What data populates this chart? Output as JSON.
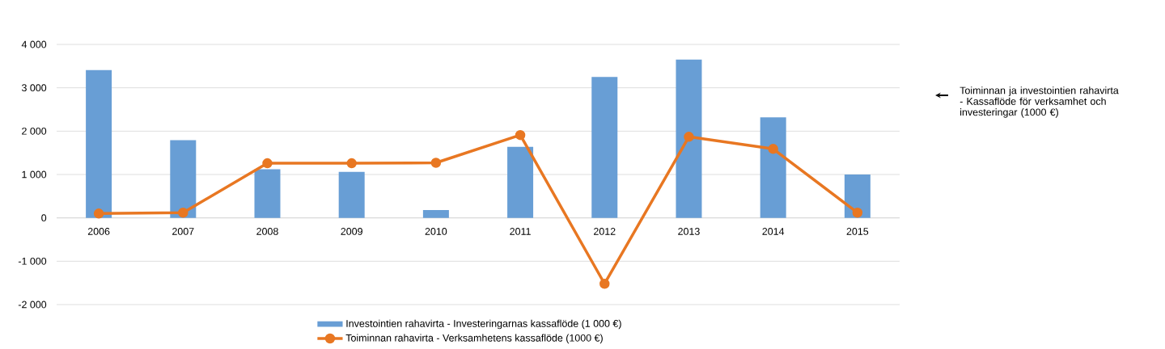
{
  "chart_data": {
    "type": "bar",
    "categories": [
      "2006",
      "2007",
      "2008",
      "2009",
      "2010",
      "2011",
      "2012",
      "2013",
      "2014",
      "2015"
    ],
    "series": [
      {
        "name": "Investointien rahavirta - Investeringarnas kassaflöde (1 000 €)",
        "color": "#689ed5",
        "values": [
          3410,
          1790,
          1120,
          1060,
          180,
          1640,
          3250,
          3650,
          2320,
          1000
        ]
      },
      {
        "name": "Toiminnan rahavirta - Verksamhetens kassaflöde (1000 €)",
        "type": "line",
        "color": "#e87722",
        "marker": "circle",
        "values": [
          100,
          120,
          1260,
          1260,
          1270,
          1910,
          -1520,
          1870,
          1590,
          120
        ]
      }
    ],
    "ylim": [
      -2000,
      4000
    ],
    "yticks": [
      {
        "value": -2000,
        "label": "-2 000"
      },
      {
        "value": -1000,
        "label": "-1 000"
      },
      0,
      {
        "value": 1000,
        "label": "1 000"
      },
      {
        "value": 2000,
        "label": "2 000"
      },
      {
        "value": 3000,
        "label": "3 000"
      },
      {
        "value": 4000,
        "label": "4 000"
      }
    ],
    "grid": "y",
    "legend": "bottom",
    "annotations": [
      "Toiminnan ja investointien rahavirta - Kassaflöde för verksamhet och investeringar (1000 €)"
    ]
  }
}
